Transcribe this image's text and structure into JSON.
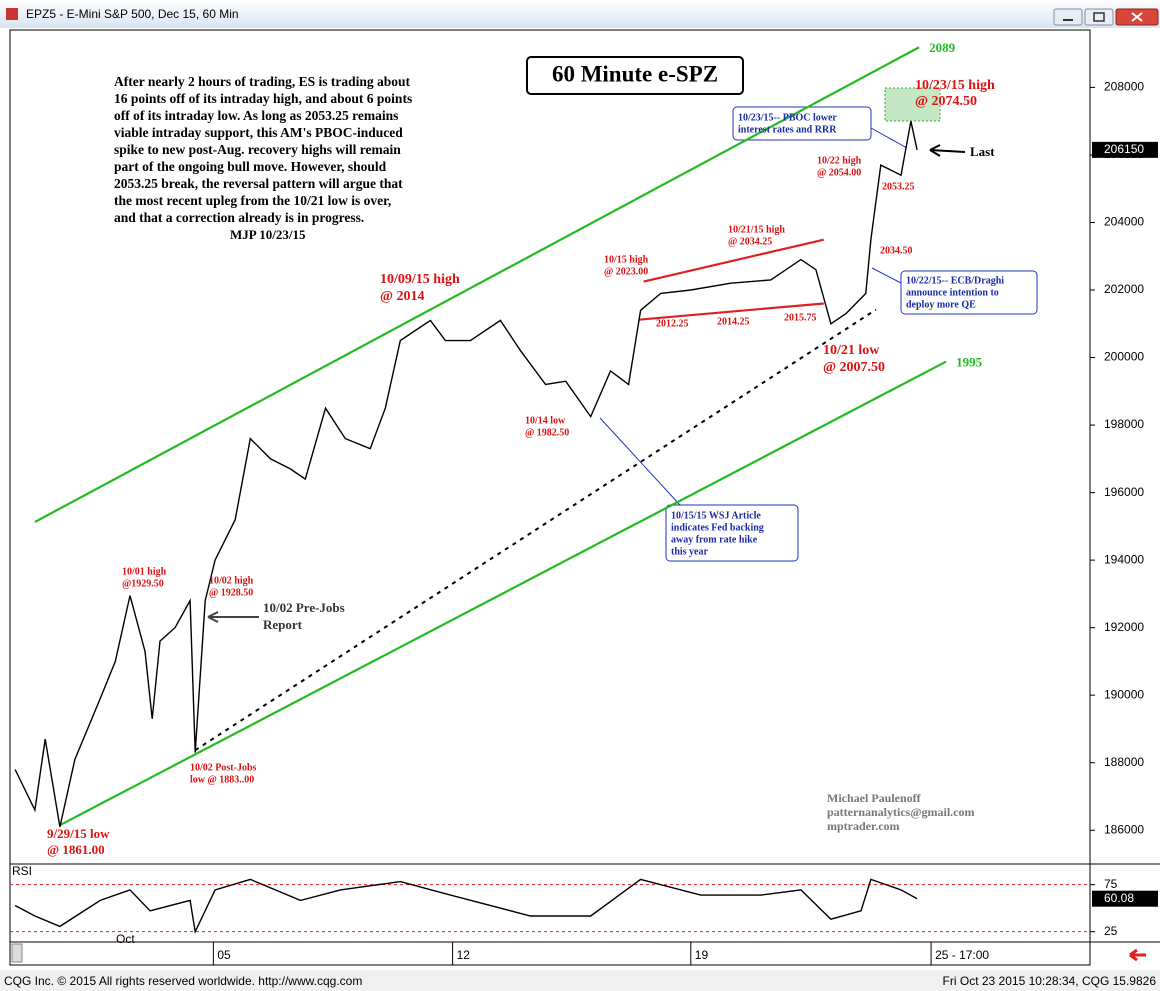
{
  "window": {
    "title": "EPZ5 - E-Mini S&P 500, Dec 15, 60 Min",
    "footer_left": "CQG Inc. © 2015 All rights reserved worldwide. http://www.cqg.com",
    "footer_right": "Fri Oct 23 2015 10:28:34, CQG 15.9826"
  },
  "chart_data": [
    {
      "type": "line",
      "title": "60 Minute e-SPZ",
      "x": [
        0.15,
        0.73,
        1.03,
        1.46,
        1.9,
        2.64,
        3.08,
        3.51,
        3.95,
        4.16,
        4.39,
        4.83,
        5.27,
        5.42,
        5.71,
        6.0,
        6.59,
        7.03,
        7.62,
        8.2,
        8.64,
        9.23,
        9.81,
        10.54,
        10.98,
        11.42,
        11.86,
        12.3,
        12.74,
        13.47,
        14.35,
        14.94,
        15.67,
        16.26,
        16.99,
        17.57,
        18.1,
        18.45,
        19.04,
        19.92,
        21.09,
        22.26,
        23.14,
        23.58,
        24.02,
        24.46,
        25.04,
        25.19,
        25.48,
        26.07,
        26.36,
        26.54
      ],
      "series": [
        {
          "color": "#000000",
          "values": [
            187800,
            186600,
            188700,
            186100,
            188100,
            189900,
            191000,
            192950,
            191300,
            189300,
            191600,
            192000,
            192800,
            188300,
            192800,
            194000,
            195200,
            197600,
            197000,
            196700,
            196400,
            198500,
            197600,
            197300,
            198500,
            200500,
            200800,
            201100,
            200500,
            200500,
            201100,
            200200,
            199200,
            199300,
            198250,
            199600,
            199200,
            201400,
            201900,
            202000,
            202200,
            202300,
            202900,
            202600,
            201000,
            201300,
            201900,
            203500,
            205700,
            205400,
            207000,
            206150
          ]
        }
      ],
      "xlim": [
        0,
        31.6
      ],
      "ylim": [
        185000,
        209700
      ],
      "xticks": [
        {
          "value": 5.95,
          "label": "05"
        },
        {
          "value": 12.95,
          "label": "12"
        },
        {
          "value": 19.92,
          "label": "19"
        },
        {
          "value": 26.95,
          "label": "25 - 17:00"
        }
      ],
      "month_label": "Oct",
      "yticks": [
        186000,
        188000,
        190000,
        192000,
        194000,
        196000,
        198000,
        200000,
        202000,
        204000,
        206000,
        208000
      ],
      "last_value": 206150,
      "trendlines": [
        {
          "color": "#22bb22",
          "dash": false,
          "label": "2089",
          "x": [
            0.73,
            26.6
          ],
          "y": [
            195130,
            209190
          ]
        },
        {
          "color": "#22bb22",
          "dash": false,
          "label": "1995",
          "x": [
            1.46,
            27.39
          ],
          "y": [
            186150,
            199880
          ]
        },
        {
          "color": "#000000",
          "dash": true,
          "x": [
            5.42,
            25.34
          ],
          "y": [
            188370,
            201420
          ]
        },
        {
          "color": "#e02020",
          "dash": false,
          "x": [
            18.54,
            23.81
          ],
          "y": [
            202250,
            203490
          ]
        },
        {
          "color": "#e02020",
          "dash": false,
          "x": [
            18.4,
            23.81
          ],
          "y": [
            201120,
            201600
          ]
        }
      ]
    },
    {
      "type": "line",
      "label": "RSI",
      "x": [
        0.15,
        0.73,
        1.46,
        2.64,
        3.51,
        4.1,
        5.27,
        5.42,
        6.0,
        7.03,
        8.5,
        9.67,
        11.42,
        12.89,
        15.23,
        16.99,
        18.45,
        20.21,
        21.97,
        23.14,
        24.02,
        24.9,
        25.19,
        26.07,
        26.54
      ],
      "series": [
        {
          "color": "#000000",
          "values": [
            52.8,
            41.7,
            30.6,
            58.3,
            69.4,
            47.2,
            58.3,
            25,
            69.4,
            80.6,
            58.3,
            69.4,
            78.3,
            63.9,
            41.7,
            41.7,
            80.6,
            63.9,
            63.9,
            69.4,
            38.3,
            47.2,
            80.6,
            69.4,
            60.08
          ]
        }
      ],
      "xlim": [
        0,
        31.6
      ],
      "ylim": [
        14,
        97
      ],
      "yticks": [
        25,
        75
      ],
      "last_value": 60.08
    }
  ],
  "commentary": {
    "lines": [
      "After nearly 2 hours of trading, ES is trading about",
      "16 points off of its intraday high, and about 6 points",
      "off of its intraday low. As long as 2053.25 remains",
      "viable intraday support, this AM's PBOC-induced",
      "spike to new post-Aug. recovery highs will remain",
      "part of the ongoing bull move. However, should",
      "2053.25 break, the reversal pattern will argue that",
      "the most recent upleg from the 10/21 low is over,",
      "and that a correction already is in progress."
    ],
    "signature": "MJP 10/23/15"
  },
  "annotations": [
    [
      "10/23/15 high",
      "@ 2074.50"
    ],
    [
      "10/23/15-- PBOC lower",
      "interest rates and RRR"
    ],
    [
      "Last"
    ],
    [
      "10/22 high",
      "@ 2054.00"
    ],
    [
      "2053.25"
    ],
    [
      "2034.50"
    ],
    [
      "10/22/15-- ECB/Draghi",
      "announce intention to",
      "deploy more QE"
    ],
    [
      "10/21/15 high",
      "@ 2034.25"
    ],
    [
      "10/15 high",
      "@ 2023.00"
    ],
    [
      "2012.25"
    ],
    [
      "2014.25"
    ],
    [
      "2015.75"
    ],
    [
      "10/21 low",
      "@ 2007.50"
    ],
    [
      "10/09/15 high",
      "@ 2014"
    ],
    [
      "10/14 low",
      "@ 1982.50"
    ],
    [
      "10/15/15 WSJ Article",
      "indicates Fed backing",
      "away from rate hike",
      "this year"
    ],
    [
      "10/01 high",
      "@1929.50"
    ],
    [
      "10/02 high",
      "@ 1928.50"
    ],
    [
      "10/02 Pre-Jobs",
      "Report"
    ],
    [
      "10/02 Post-Jobs",
      "low @ 1883..00"
    ],
    [
      "9/29/15 low",
      "@ 1861.00"
    ]
  ],
  "credit": [
    "Michael Paulenoff",
    "patternanalytics@gmail.com",
    "mptrader.com"
  ]
}
